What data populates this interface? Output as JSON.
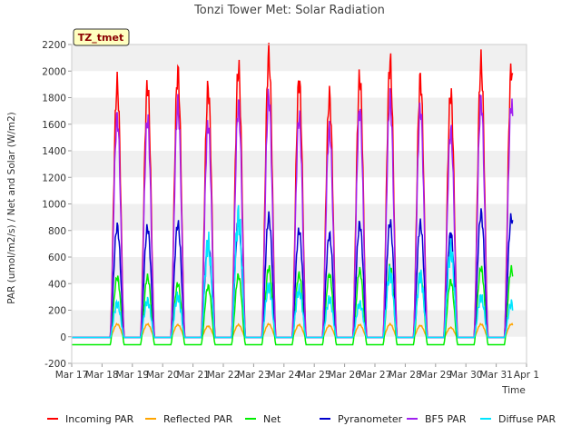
{
  "chart_data": {
    "type": "line",
    "title": "Tonzi Tower Met: Solar Radiation",
    "badge": "TZ_tmet",
    "xlabel": "Time",
    "ylabel": "PAR (umol/m2/s) / Net and Solar (W/m2)",
    "ylim": [
      -200,
      2200
    ],
    "yticks": [
      -200,
      0,
      200,
      400,
      600,
      800,
      1000,
      1200,
      1400,
      1600,
      1800,
      2000,
      2200
    ],
    "xlim": [
      17,
      32
    ],
    "xticks": [
      {
        "pos": 17,
        "label": "Mar 17"
      },
      {
        "pos": 18,
        "label": "Mar 18"
      },
      {
        "pos": 19,
        "label": "Mar 19"
      },
      {
        "pos": 20,
        "label": "Mar 20"
      },
      {
        "pos": 21,
        "label": "Mar 21"
      },
      {
        "pos": 22,
        "label": "Mar 22"
      },
      {
        "pos": 23,
        "label": "Mar 23"
      },
      {
        "pos": 24,
        "label": "Mar 24"
      },
      {
        "pos": 25,
        "label": "Mar 25"
      },
      {
        "pos": 26,
        "label": "Mar 26"
      },
      {
        "pos": 27,
        "label": "Mar 27"
      },
      {
        "pos": 28,
        "label": "Mar 28"
      },
      {
        "pos": 29,
        "label": "Mar 29"
      },
      {
        "pos": 30,
        "label": "Mar 30"
      },
      {
        "pos": 31,
        "label": "Mar 31"
      },
      {
        "pos": 32,
        "label": "Apr 1"
      }
    ],
    "grid": "horizontal bands",
    "legend_position": "bottom",
    "days": [
      18,
      19,
      20,
      21,
      22,
      23,
      24,
      25,
      26,
      27,
      28,
      29,
      30,
      31
    ],
    "series": [
      {
        "name": "Incoming PAR",
        "color": "#ff0000",
        "peaks": [
          1900,
          1890,
          1990,
          1870,
          2020,
          2120,
          1930,
          1810,
          1950,
          2070,
          1940,
          1830,
          2060,
          2020
        ]
      },
      {
        "name": "Reflected PAR",
        "color": "#ffa500",
        "peaks": [
          95,
          95,
          90,
          80,
          90,
          95,
          90,
          85,
          90,
          95,
          85,
          70,
          95,
          95
        ]
      },
      {
        "name": "Net",
        "color": "#00ee00",
        "peaks": [
          450,
          450,
          400,
          380,
          460,
          520,
          470,
          470,
          500,
          530,
          480,
          420,
          520,
          510
        ],
        "night": -60
      },
      {
        "name": "Pyranometer",
        "color": "#0000cc",
        "peaks": [
          830,
          820,
          850,
          700,
          870,
          900,
          800,
          770,
          850,
          860,
          850,
          780,
          930,
          900
        ]
      },
      {
        "name": "BF5 PAR",
        "color": "#a020f0",
        "peaks": [
          1650,
          1640,
          1740,
          1600,
          1740,
          1810,
          1650,
          1560,
          1710,
          1790,
          1710,
          1550,
          1780,
          1750
        ]
      },
      {
        "name": "Diffuse PAR",
        "color": "#00e5ff",
        "peaks": [
          250,
          270,
          300,
          700,
          900,
          380,
          350,
          280,
          250,
          480,
          450,
          650,
          300,
          250
        ]
      }
    ]
  }
}
